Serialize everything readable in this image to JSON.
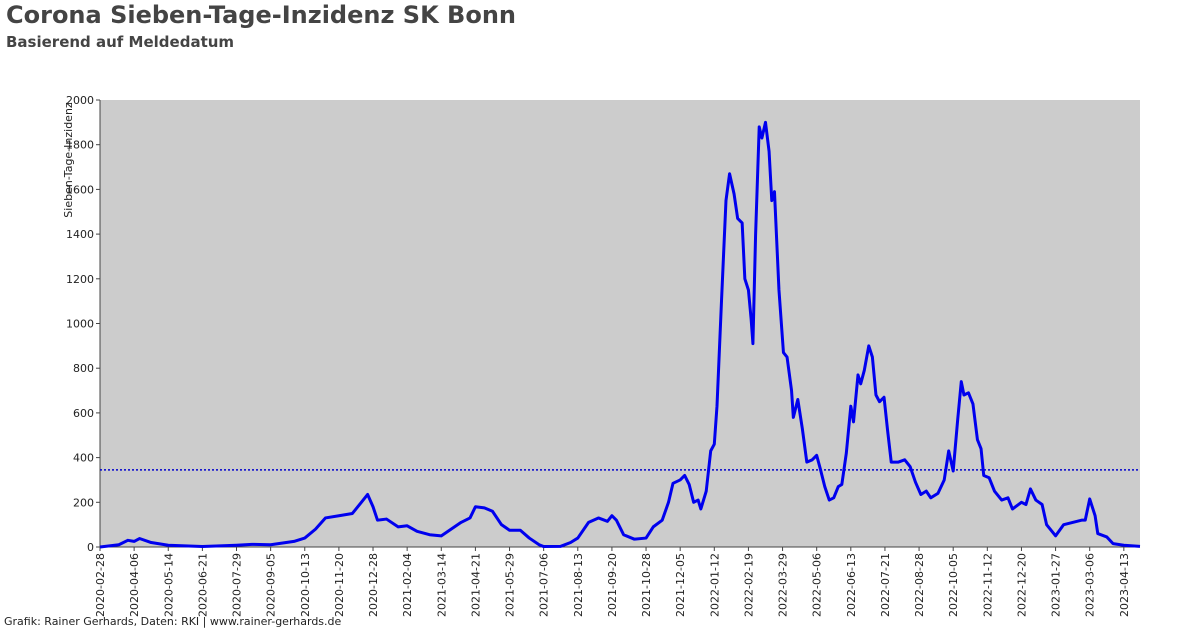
{
  "chart_data": {
    "type": "line",
    "title": "Corona Sieben-Tage-Inzidenz SK Bonn",
    "subtitle": "Basierend auf Meldedatum",
    "y_label": "Sieben-Tage-Inzidenz",
    "footer": "Grafik: Rainer Gerhards, Daten: RKI | www.rainer-gerhards.de",
    "plot_background": "#cccccc",
    "reference_line": {
      "value": 345,
      "color": "#0000cc"
    },
    "xlim": [
      "2020-02-28",
      "2023-05-01"
    ],
    "ylim": [
      0,
      2000
    ],
    "yticks": [
      0,
      200,
      400,
      600,
      800,
      1000,
      1200,
      1400,
      1600,
      1800,
      2000
    ],
    "xticks": [
      "2020-02-28",
      "2020-04-06",
      "2020-05-14",
      "2020-06-21",
      "2020-07-29",
      "2020-09-05",
      "2020-10-13",
      "2020-11-20",
      "2020-12-28",
      "2021-02-04",
      "2021-03-14",
      "2021-04-21",
      "2021-05-29",
      "2021-07-06",
      "2021-08-13",
      "2021-09-20",
      "2021-10-28",
      "2021-12-05",
      "2022-01-12",
      "2022-02-19",
      "2022-03-29",
      "2022-05-06",
      "2022-06-13",
      "2022-07-21",
      "2022-08-28",
      "2022-10-05",
      "2022-11-12",
      "2022-12-20",
      "2023-01-27",
      "2023-03-06",
      "2023-04-13"
    ],
    "series": [
      {
        "name": "Sieben-Tage-Inzidenz",
        "color": "#0000ee",
        "x": [
          "2020-02-28",
          "2020-03-20",
          "2020-03-30",
          "2020-04-06",
          "2020-04-12",
          "2020-04-25",
          "2020-05-14",
          "2020-06-21",
          "2020-07-29",
          "2020-08-15",
          "2020-09-05",
          "2020-10-01",
          "2020-10-13",
          "2020-10-25",
          "2020-11-05",
          "2020-11-20",
          "2020-12-05",
          "2020-12-15",
          "2020-12-22",
          "2020-12-28",
          "2021-01-02",
          "2021-01-12",
          "2021-01-25",
          "2021-02-04",
          "2021-02-15",
          "2021-03-01",
          "2021-03-14",
          "2021-03-25",
          "2021-04-05",
          "2021-04-15",
          "2021-04-21",
          "2021-05-01",
          "2021-05-10",
          "2021-05-20",
          "2021-05-29",
          "2021-06-10",
          "2021-06-20",
          "2021-07-01",
          "2021-07-06",
          "2021-07-25",
          "2021-08-05",
          "2021-08-13",
          "2021-08-25",
          "2021-09-05",
          "2021-09-15",
          "2021-09-20",
          "2021-09-25",
          "2021-10-03",
          "2021-10-15",
          "2021-10-28",
          "2021-11-05",
          "2021-11-15",
          "2021-11-22",
          "2021-11-27",
          "2021-12-05",
          "2021-12-10",
          "2021-12-15",
          "2021-12-20",
          "2021-12-25",
          "2021-12-28",
          "2022-01-03",
          "2022-01-08",
          "2022-01-12",
          "2022-01-15",
          "2022-01-20",
          "2022-01-25",
          "2022-01-29",
          "2022-02-03",
          "2022-02-07",
          "2022-02-12",
          "2022-02-15",
          "2022-02-19",
          "2022-02-22",
          "2022-02-24",
          "2022-02-27",
          "2022-03-03",
          "2022-03-06",
          "2022-03-10",
          "2022-03-14",
          "2022-03-17",
          "2022-03-20",
          "2022-03-25",
          "2022-03-30",
          "2022-04-03",
          "2022-04-08",
          "2022-04-10",
          "2022-04-15",
          "2022-04-20",
          "2022-04-25",
          "2022-05-01",
          "2022-05-06",
          "2022-05-10",
          "2022-05-15",
          "2022-05-20",
          "2022-05-25",
          "2022-05-30",
          "2022-06-03",
          "2022-06-08",
          "2022-06-13",
          "2022-06-16",
          "2022-06-21",
          "2022-06-24",
          "2022-06-28",
          "2022-07-03",
          "2022-07-07",
          "2022-07-11",
          "2022-07-15",
          "2022-07-20",
          "2022-07-24",
          "2022-07-28",
          "2022-08-05",
          "2022-08-12",
          "2022-08-18",
          "2022-08-24",
          "2022-08-30",
          "2022-09-05",
          "2022-09-10",
          "2022-09-18",
          "2022-09-25",
          "2022-09-30",
          "2022-10-05",
          "2022-10-10",
          "2022-10-14",
          "2022-10-17",
          "2022-10-22",
          "2022-10-27",
          "2022-11-01",
          "2022-11-05",
          "2022-11-08",
          "2022-11-14",
          "2022-11-20",
          "2022-11-28",
          "2022-12-05",
          "2022-12-10",
          "2022-12-20",
          "2022-12-25",
          "2022-12-30",
          "2023-01-05",
          "2023-01-12",
          "2023-01-17",
          "2023-01-27",
          "2023-02-05",
          "2023-02-15",
          "2023-02-25",
          "2023-03-01",
          "2023-03-06",
          "2023-03-12",
          "2023-03-15",
          "2023-03-25",
          "2023-04-01",
          "2023-04-13",
          "2023-05-01"
        ],
        "values": [
          0,
          10,
          30,
          25,
          38,
          20,
          8,
          2,
          8,
          12,
          10,
          25,
          40,
          80,
          130,
          140,
          150,
          200,
          235,
          180,
          120,
          125,
          90,
          95,
          70,
          55,
          50,
          80,
          110,
          130,
          180,
          175,
          160,
          100,
          75,
          75,
          40,
          10,
          2,
          3,
          20,
          40,
          110,
          130,
          115,
          140,
          120,
          55,
          35,
          40,
          90,
          120,
          200,
          285,
          300,
          320,
          280,
          200,
          210,
          170,
          250,
          430,
          460,
          630,
          1100,
          1550,
          1670,
          1580,
          1470,
          1450,
          1200,
          1150,
          1020,
          910,
          1400,
          1880,
          1830,
          1900,
          1770,
          1550,
          1590,
          1150,
          870,
          850,
          700,
          580,
          660,
          530,
          380,
          390,
          410,
          350,
          270,
          210,
          220,
          270,
          280,
          420,
          630,
          560,
          770,
          730,
          790,
          900,
          850,
          680,
          650,
          670,
          520,
          380,
          380,
          390,
          360,
          290,
          235,
          250,
          220,
          240,
          300,
          430,
          340,
          570,
          740,
          680,
          690,
          640,
          480,
          440,
          320,
          310,
          250,
          210,
          220,
          170,
          200,
          190,
          260,
          210,
          190,
          100,
          50,
          100,
          110,
          120,
          120,
          215,
          140,
          60,
          45,
          15,
          8,
          3
        ]
      }
    ]
  }
}
